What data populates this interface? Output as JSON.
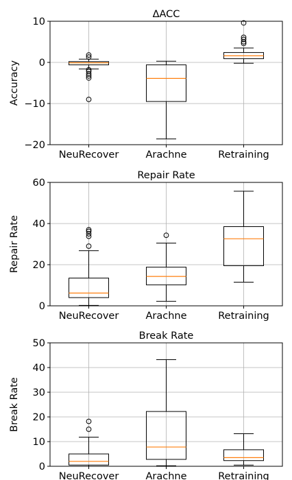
{
  "chart_data": [
    {
      "type": "box",
      "title": "ΔACC",
      "ylabel": "Accuracy",
      "xlabel": "",
      "ylim": [
        -20,
        10
      ],
      "yticks": [
        -20,
        -10,
        0,
        10
      ],
      "ytick_labels": [
        "−20",
        "−10",
        "0",
        "10"
      ],
      "grid": true,
      "categories": [
        "NeuRecover",
        "Arachne",
        "Retraining"
      ],
      "boxes": [
        {
          "whislo": -1.6,
          "q1": -0.6,
          "med": -0.1,
          "q3": 0.2,
          "whishi": 0.8,
          "fliers": [
            1.3,
            1.8,
            -1.8,
            -2.2,
            -2.8,
            -3.3,
            -3.8,
            -9.0
          ]
        },
        {
          "whislo": -18.6,
          "q1": -9.5,
          "med": -3.9,
          "q3": -0.6,
          "whishi": 0.3,
          "fliers": []
        },
        {
          "whislo": -0.2,
          "q1": 0.9,
          "med": 1.6,
          "q3": 2.4,
          "whishi": 3.5,
          "fliers": [
            4.6,
            5.0,
            5.6,
            6.1,
            9.6
          ]
        }
      ]
    },
    {
      "type": "box",
      "title": "Repair Rate",
      "ylabel": "Repair Rate",
      "xlabel": "",
      "ylim": [
        0,
        60
      ],
      "yticks": [
        0,
        20,
        40,
        60
      ],
      "ytick_labels": [
        "0",
        "20",
        "40",
        "60"
      ],
      "grid": true,
      "categories": [
        "NeuRecover",
        "Arachne",
        "Retraining"
      ],
      "boxes": [
        {
          "whislo": 0.2,
          "q1": 4.0,
          "med": 6.2,
          "q3": 13.5,
          "whishi": 26.8,
          "fliers": [
            29.0,
            33.8,
            35.0,
            36.2,
            37.0
          ]
        },
        {
          "whislo": 2.2,
          "q1": 10.2,
          "med": 14.3,
          "q3": 18.8,
          "whishi": 30.5,
          "fliers": [
            34.3
          ]
        },
        {
          "whislo": 11.5,
          "q1": 19.5,
          "med": 32.6,
          "q3": 38.5,
          "whishi": 55.7,
          "fliers": []
        }
      ]
    },
    {
      "type": "box",
      "title": "Break Rate",
      "ylabel": "Break Rate",
      "xlabel": "",
      "ylim": [
        0,
        50
      ],
      "yticks": [
        0,
        10,
        20,
        30,
        40,
        50
      ],
      "ytick_labels": [
        "0",
        "10",
        "20",
        "30",
        "40",
        "50"
      ],
      "grid": true,
      "categories": [
        "NeuRecover",
        "Arachne",
        "Retraining"
      ],
      "boxes": [
        {
          "whislo": 0.0,
          "q1": 0.5,
          "med": 2.0,
          "q3": 5.0,
          "whishi": 11.8,
          "fliers": [
            15.0,
            18.2
          ]
        },
        {
          "whislo": 0.2,
          "q1": 2.8,
          "med": 7.8,
          "q3": 22.2,
          "whishi": 43.2,
          "fliers": []
        },
        {
          "whislo": 0.5,
          "q1": 2.3,
          "med": 3.5,
          "q3": 6.7,
          "whishi": 13.2,
          "fliers": []
        }
      ]
    }
  ]
}
